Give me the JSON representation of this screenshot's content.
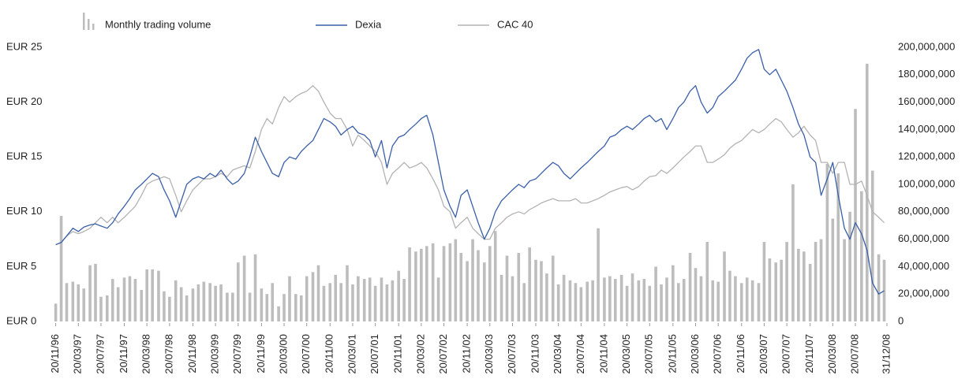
{
  "chart_data": {
    "type": "combo",
    "x": [
      1996.88,
      1996.96,
      1997.04,
      1997.13,
      1997.21,
      1997.29,
      1997.38,
      1997.46,
      1997.54,
      1997.63,
      1997.71,
      1997.79,
      1997.88,
      1997.96,
      1998.04,
      1998.13,
      1998.21,
      1998.29,
      1998.38,
      1998.46,
      1998.54,
      1998.63,
      1998.71,
      1998.79,
      1998.88,
      1998.96,
      1999.04,
      1999.13,
      1999.21,
      1999.29,
      1999.38,
      1999.46,
      1999.54,
      1999.63,
      1999.71,
      1999.79,
      1999.88,
      1999.96,
      2000.04,
      2000.13,
      2000.21,
      2000.29,
      2000.38,
      2000.46,
      2000.54,
      2000.63,
      2000.71,
      2000.79,
      2000.88,
      2000.96,
      2001.04,
      2001.13,
      2001.21,
      2001.29,
      2001.38,
      2001.46,
      2001.54,
      2001.63,
      2001.71,
      2001.79,
      2001.88,
      2001.96,
      2002.04,
      2002.13,
      2002.21,
      2002.29,
      2002.38,
      2002.46,
      2002.54,
      2002.63,
      2002.71,
      2002.79,
      2002.88,
      2002.96,
      2003.04,
      2003.13,
      2003.21,
      2003.29,
      2003.38,
      2003.46,
      2003.54,
      2003.63,
      2003.71,
      2003.79,
      2003.88,
      2003.96,
      2004.04,
      2004.13,
      2004.21,
      2004.29,
      2004.38,
      2004.46,
      2004.54,
      2004.63,
      2004.71,
      2004.79,
      2004.88,
      2004.96,
      2005.04,
      2005.13,
      2005.21,
      2005.29,
      2005.38,
      2005.46,
      2005.54,
      2005.63,
      2005.71,
      2005.79,
      2005.88,
      2005.96,
      2006.04,
      2006.13,
      2006.21,
      2006.29,
      2006.38,
      2006.46,
      2006.54,
      2006.63,
      2006.71,
      2006.79,
      2006.88,
      2006.96,
      2007.04,
      2007.13,
      2007.21,
      2007.29,
      2007.38,
      2007.46,
      2007.54,
      2007.63,
      2007.71,
      2007.79,
      2007.88,
      2007.96,
      2008.04,
      2008.13,
      2008.21,
      2008.29,
      2008.38,
      2008.46,
      2008.54,
      2008.63,
      2008.71,
      2008.79,
      2008.88,
      2008.96
    ],
    "series": [
      {
        "name": "Monthly trading volume",
        "type": "bar",
        "axis": "y2",
        "color": "#bdbdbd",
        "values": [
          13000000.0,
          77000000.0,
          28000000.0,
          29000000.0,
          27000000.0,
          24000000.0,
          41000000.0,
          42000000.0,
          18000000.0,
          19000000.0,
          31000000.0,
          25000000.0,
          32000000.0,
          33000000.0,
          31000000.0,
          23000000.0,
          38000000.0,
          38000000.0,
          37000000.0,
          22000000.0,
          18000000.0,
          30000000.0,
          25000000.0,
          19000000.0,
          24000000.0,
          27000000.0,
          29000000.0,
          28000000.0,
          26000000.0,
          27000000.0,
          21000000.0,
          21000000.0,
          43000000.0,
          48000000.0,
          21000000.0,
          49000000.0,
          24000000.0,
          20000000.0,
          28000000.0,
          11000000.0,
          20000000.0,
          33000000.0,
          20000000.0,
          19000000.0,
          33000000.0,
          36000000.0,
          41000000.0,
          26000000.0,
          28000000.0,
          34000000.0,
          28000000.0,
          41000000.0,
          27000000.0,
          33000000.0,
          31000000.0,
          32000000.0,
          26000000.0,
          32000000.0,
          27000000.0,
          30000000.0,
          37000000.0,
          31000000.0,
          54000000.0,
          51000000.0,
          53000000.0,
          55000000.0,
          57000000.0,
          32000000.0,
          55000000.0,
          57000000.0,
          60000000.0,
          50000000.0,
          44000000.0,
          60000000.0,
          52000000.0,
          43000000.0,
          55000000.0,
          66000000.0,
          34000000.0,
          48000000.0,
          33000000.0,
          50000000.0,
          28000000.0,
          54000000.0,
          45000000.0,
          44000000.0,
          35000000.0,
          48000000.0,
          27000000.0,
          34000000.0,
          30000000.0,
          28000000.0,
          25000000.0,
          29000000.0,
          30000000.0,
          68000000.0,
          32000000.0,
          33000000.0,
          31000000.0,
          34000000.0,
          26000000.0,
          35000000.0,
          30000000.0,
          31000000.0,
          26000000.0,
          40000000.0,
          27000000.0,
          32000000.0,
          41000000.0,
          28000000.0,
          31000000.0,
          50000000.0,
          39000000.0,
          33000000.0,
          58000000.0,
          30000000.0,
          29000000.0,
          51000000.0,
          37000000.0,
          33000000.0,
          28000000.0,
          32000000.0,
          30000000.0,
          28000000.0,
          58000000.0,
          46000000.0,
          43000000.0,
          45000000.0,
          58000000.0,
          100000000.0,
          53000000.0,
          51000000.0,
          42000000.0,
          58000000.0,
          60000000.0,
          115000000.0,
          75000000.0,
          108000000.0,
          60000000.0,
          80000000.0,
          155000000.0,
          95000000.0,
          188000000.0,
          110000000.0,
          49000000.0,
          45000000.0
        ]
      },
      {
        "name": "Dexia",
        "type": "line",
        "color": "#3a5fa8",
        "values": [
          7.0,
          7.2,
          7.8,
          8.5,
          8.2,
          8.6,
          8.8,
          8.9,
          8.7,
          8.5,
          9.0,
          9.8,
          10.5,
          11.2,
          12.0,
          12.5,
          13.0,
          13.5,
          13.2,
          12.0,
          11.0,
          9.5,
          11.0,
          12.5,
          13.0,
          13.2,
          13.0,
          13.5,
          13.2,
          13.8,
          13.0,
          12.5,
          12.8,
          13.5,
          15.0,
          16.8,
          15.5,
          14.5,
          13.5,
          13.2,
          14.5,
          15.0,
          14.8,
          15.5,
          16.0,
          16.5,
          17.5,
          18.5,
          18.2,
          17.8,
          17.0,
          17.5,
          17.8,
          17.2,
          17.0,
          16.5,
          15.0,
          16.5,
          14.0,
          16.0,
          16.8,
          17.0,
          17.5,
          18.0,
          18.5,
          18.8,
          17.0,
          14.5,
          12.0,
          10.5,
          9.5,
          11.5,
          12.0,
          10.5,
          9.0,
          7.5,
          8.5,
          10.0,
          11.0,
          11.5,
          12.0,
          12.5,
          12.2,
          12.8,
          13.0,
          13.5,
          14.0,
          14.5,
          14.2,
          13.5,
          13.0,
          13.5,
          14.0,
          14.5,
          15.0,
          15.5,
          16.0,
          16.8,
          17.0,
          17.5,
          17.8,
          17.5,
          18.0,
          18.5,
          18.8,
          18.2,
          18.5,
          17.5,
          18.5,
          19.5,
          20.0,
          21.0,
          21.5,
          20.0,
          19.0,
          19.5,
          20.5,
          21.0,
          21.5,
          22.0,
          23.0,
          24.0,
          24.5,
          24.8,
          23.0,
          22.5,
          23.0,
          22.0,
          21.0,
          19.5,
          18.0,
          17.0,
          15.0,
          14.5,
          11.5,
          13.0,
          14.5,
          11.5,
          8.5,
          7.5,
          9.0,
          8.0,
          6.5,
          3.5,
          2.5,
          2.8
        ]
      },
      {
        "name": "CAC 40",
        "type": "line",
        "color": "#b3b3b3",
        "values": [
          7.0,
          7.2,
          7.8,
          8.2,
          8.0,
          8.2,
          8.5,
          9.0,
          9.5,
          9.0,
          9.5,
          9.0,
          9.5,
          10.0,
          10.5,
          11.5,
          12.5,
          12.8,
          13.0,
          13.2,
          13.0,
          11.5,
          10.0,
          11.0,
          12.0,
          12.5,
          13.0,
          13.0,
          13.2,
          13.5,
          13.2,
          13.8,
          14.0,
          14.2,
          14.0,
          15.5,
          17.5,
          18.5,
          18.0,
          19.5,
          20.5,
          20.0,
          20.5,
          20.8,
          21.0,
          21.5,
          21.0,
          20.0,
          19.0,
          18.5,
          18.5,
          17.5,
          16.0,
          17.0,
          16.5,
          16.0,
          15.5,
          14.5,
          12.5,
          13.5,
          14.0,
          14.5,
          14.0,
          14.2,
          14.5,
          14.0,
          13.0,
          12.0,
          10.5,
          10.0,
          8.5,
          9.0,
          9.5,
          8.5,
          8.0,
          7.5,
          7.5,
          8.5,
          9.0,
          9.5,
          9.8,
          10.0,
          9.8,
          10.2,
          10.5,
          10.8,
          11.0,
          11.2,
          11.0,
          11.0,
          11.0,
          11.2,
          10.8,
          10.8,
          11.0,
          11.2,
          11.5,
          11.8,
          12.0,
          12.2,
          12.3,
          12.0,
          12.3,
          12.8,
          13.2,
          13.3,
          13.8,
          13.5,
          14.0,
          14.5,
          15.0,
          15.5,
          16.0,
          16.0,
          14.5,
          14.5,
          14.8,
          15.2,
          15.8,
          16.2,
          16.5,
          17.0,
          17.5,
          17.2,
          17.5,
          18.0,
          18.5,
          18.2,
          17.5,
          16.8,
          17.2,
          17.8,
          17.0,
          16.5,
          14.5,
          14.5,
          13.5,
          14.5,
          14.5,
          12.5,
          12.5,
          12.8,
          11.5,
          10.0,
          9.5,
          9.0
        ]
      }
    ],
    "xlim": [
      1996.85,
      2009.0
    ],
    "xticks": [
      {
        "value": 1996.88,
        "label": "20/11/96"
      },
      {
        "value": 1997.21,
        "label": "20/03/97"
      },
      {
        "value": 1997.54,
        "label": "20/07/97"
      },
      {
        "value": 1997.88,
        "label": "20/11/97"
      },
      {
        "value": 1998.21,
        "label": "20/03/98"
      },
      {
        "value": 1998.54,
        "label": "20/07/98"
      },
      {
        "value": 1998.88,
        "label": "20/11/98"
      },
      {
        "value": 1999.21,
        "label": "20/03/99"
      },
      {
        "value": 1999.54,
        "label": "20/07/99"
      },
      {
        "value": 1999.88,
        "label": "20/11/99"
      },
      {
        "value": 2000.21,
        "label": "20/03/00"
      },
      {
        "value": 2000.54,
        "label": "20/07/00"
      },
      {
        "value": 2000.88,
        "label": "20/11/00"
      },
      {
        "value": 2001.21,
        "label": "20/03/01"
      },
      {
        "value": 2001.54,
        "label": "20/07/01"
      },
      {
        "value": 2001.88,
        "label": "20/11/01"
      },
      {
        "value": 2002.21,
        "label": "20/03/02"
      },
      {
        "value": 2002.54,
        "label": "20/07/02"
      },
      {
        "value": 2002.88,
        "label": "20/11/02"
      },
      {
        "value": 2003.21,
        "label": "20/03/03"
      },
      {
        "value": 2003.54,
        "label": "20/07/03"
      },
      {
        "value": 2003.88,
        "label": "20/11/03"
      },
      {
        "value": 2004.21,
        "label": "20/03/04"
      },
      {
        "value": 2004.54,
        "label": "20/07/04"
      },
      {
        "value": 2004.88,
        "label": "20/11/04"
      },
      {
        "value": 2005.21,
        "label": "20/03/05"
      },
      {
        "value": 2005.54,
        "label": "20/07/05"
      },
      {
        "value": 2005.88,
        "label": "20/11/05"
      },
      {
        "value": 2006.21,
        "label": "20/03/06"
      },
      {
        "value": 2006.54,
        "label": "20/07/06"
      },
      {
        "value": 2006.88,
        "label": "20/11/06"
      },
      {
        "value": 2007.21,
        "label": "20/03/07"
      },
      {
        "value": 2007.54,
        "label": "20/07/07"
      },
      {
        "value": 2007.88,
        "label": "20/11/07"
      },
      {
        "value": 2008.21,
        "label": "20/03/08"
      },
      {
        "value": 2008.54,
        "label": "20/07/08"
      },
      {
        "value": 2009.0,
        "label": "31/12/08"
      }
    ],
    "ylim": [
      0,
      25
    ],
    "yticks": [
      {
        "value": 0,
        "label": "EUR 0"
      },
      {
        "value": 5,
        "label": "EUR 5"
      },
      {
        "value": 10,
        "label": "EUR 10"
      },
      {
        "value": 15,
        "label": "EUR 15"
      },
      {
        "value": 20,
        "label": "EUR 20"
      },
      {
        "value": 25,
        "label": "EUR 25"
      }
    ],
    "y2lim": [
      0,
      200000000
    ],
    "y2ticks": [
      0,
      {
        "value": 20000000,
        "label": "20,000,000"
      },
      {
        "value": 40000000,
        "label": "40,000,000"
      },
      {
        "value": 60000000,
        "label": "60,000,000"
      },
      {
        "value": 80000000,
        "label": "80,000,000"
      },
      {
        "value": 100000000,
        "label": "100,000,000"
      },
      {
        "value": 120000000,
        "label": "120,000,000"
      },
      {
        "value": 140000000,
        "label": "140,000,000"
      },
      {
        "value": 160000000,
        "label": "160,000,000"
      },
      {
        "value": 180000000,
        "label": "180,000,000"
      },
      {
        "value": 200000000,
        "label": "200,000,000"
      }
    ],
    "legend": "top"
  }
}
